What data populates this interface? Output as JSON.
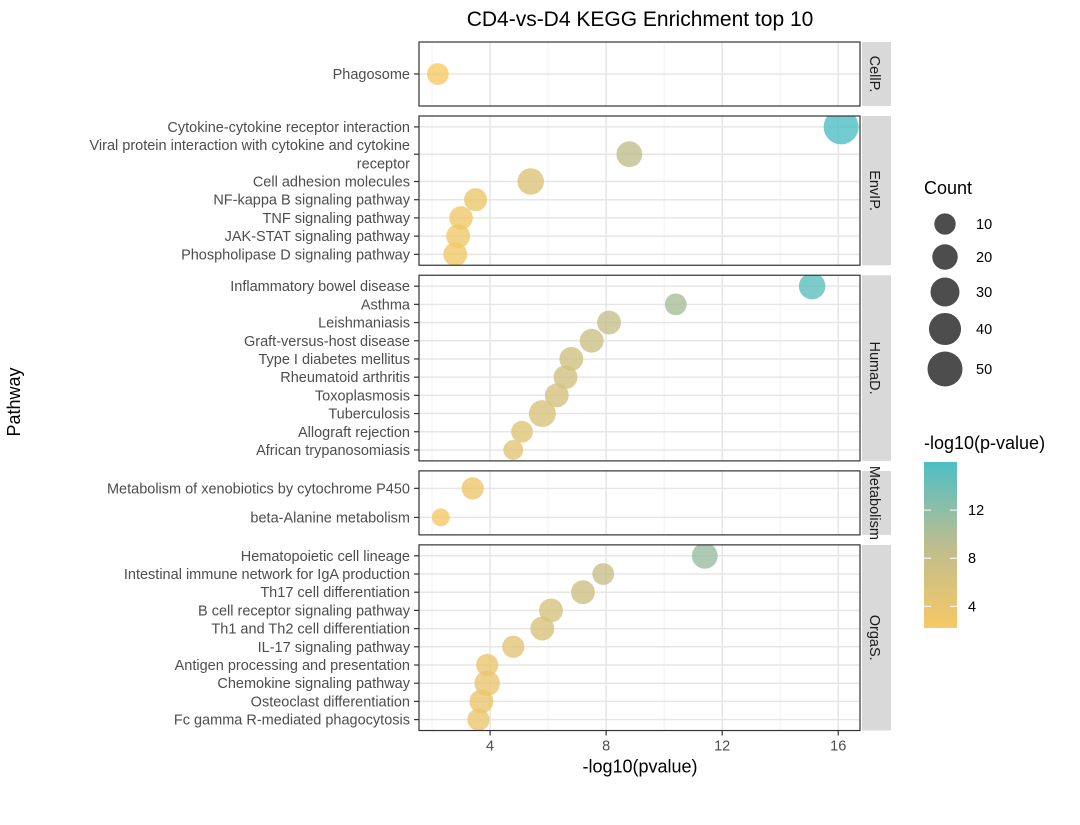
{
  "chart_data": {
    "type": "scatter",
    "title": "CD4-vs-D4 KEGG Enrichment top 10",
    "xlabel": "-log10(pvalue)",
    "ylabel": "Pathway",
    "xlim": [
      1.55,
      16.75
    ],
    "xticks": [
      4,
      8,
      12,
      16
    ],
    "grid": true,
    "legend_position": "right",
    "size_legend": {
      "title": "Count",
      "values": [
        10,
        20,
        30,
        40,
        50
      ]
    },
    "color_legend": {
      "title": "-log10(p-value)",
      "ticks": [
        4,
        8,
        12
      ],
      "range": [
        2.2,
        16
      ],
      "low_color": "#F6C965",
      "mid_color": "#BDBD8F",
      "high_color": "#4DBFC5"
    },
    "panels": [
      {
        "name": "CellP.",
        "points": [
          {
            "label": "Phagosome",
            "x": 2.2,
            "count": 11
          }
        ]
      },
      {
        "name": "EnvIP.",
        "points": [
          {
            "label": "Cytokine-cytokine receptor interaction",
            "x": 16.1,
            "count": 50
          },
          {
            "label": "Viral protein interaction with cytokine and cytokine\nreceptor",
            "x": 8.8,
            "count": 21
          },
          {
            "label": "Cell adhesion molecules",
            "x": 5.4,
            "count": 23
          },
          {
            "label": "NF-kappa B signaling pathway",
            "x": 3.5,
            "count": 14
          },
          {
            "label": "TNF signaling pathway",
            "x": 3.0,
            "count": 15
          },
          {
            "label": "JAK-STAT signaling pathway",
            "x": 2.9,
            "count": 16
          },
          {
            "label": "Phospholipase D signaling pathway",
            "x": 2.8,
            "count": 16
          }
        ]
      },
      {
        "name": "HumaD.",
        "points": [
          {
            "label": "Inflammatory bowel disease",
            "x": 15.1,
            "count": 23
          },
          {
            "label": "Asthma",
            "x": 10.4,
            "count": 11
          },
          {
            "label": "Leishmaniasis",
            "x": 8.1,
            "count": 16
          },
          {
            "label": "Graft-versus-host disease",
            "x": 7.5,
            "count": 16
          },
          {
            "label": "Type I diabetes mellitus",
            "x": 6.8,
            "count": 16
          },
          {
            "label": "Rheumatoid arthritis",
            "x": 6.6,
            "count": 16
          },
          {
            "label": "Toxoplasmosis",
            "x": 6.3,
            "count": 16
          },
          {
            "label": "Tuberculosis",
            "x": 5.8,
            "count": 24
          },
          {
            "label": "Allograft rejection",
            "x": 5.1,
            "count": 11
          },
          {
            "label": "African trypanosomiasis",
            "x": 4.8,
            "count": 7
          }
        ]
      },
      {
        "name": "Metabolism",
        "points": [
          {
            "label": "Metabolism of xenobiotics by cytochrome P450",
            "x": 3.4,
            "count": 12
          },
          {
            "label": "beta-Alanine metabolism",
            "x": 2.3,
            "count": 3
          }
        ]
      },
      {
        "name": "OrgaS.",
        "points": [
          {
            "label": "Hematopoietic cell lineage",
            "x": 11.4,
            "count": 21
          },
          {
            "label": "Intestinal immune network for IgA production",
            "x": 7.9,
            "count": 11
          },
          {
            "label": "Th17 cell differentiation",
            "x": 7.2,
            "count": 16
          },
          {
            "label": "B cell receptor signaling pathway",
            "x": 6.1,
            "count": 16
          },
          {
            "label": "Th1 and Th2 cell differentiation",
            "x": 5.8,
            "count": 16
          },
          {
            "label": "IL-17 signaling pathway",
            "x": 4.8,
            "count": 12
          },
          {
            "label": "Antigen processing and presentation",
            "x": 3.9,
            "count": 12
          },
          {
            "label": "Chemokine signaling pathway",
            "x": 3.9,
            "count": 20
          },
          {
            "label": "Osteoclast differentiation",
            "x": 3.7,
            "count": 16
          },
          {
            "label": "Fc gamma R-mediated phagocytosis",
            "x": 3.6,
            "count": 12
          }
        ]
      }
    ]
  }
}
